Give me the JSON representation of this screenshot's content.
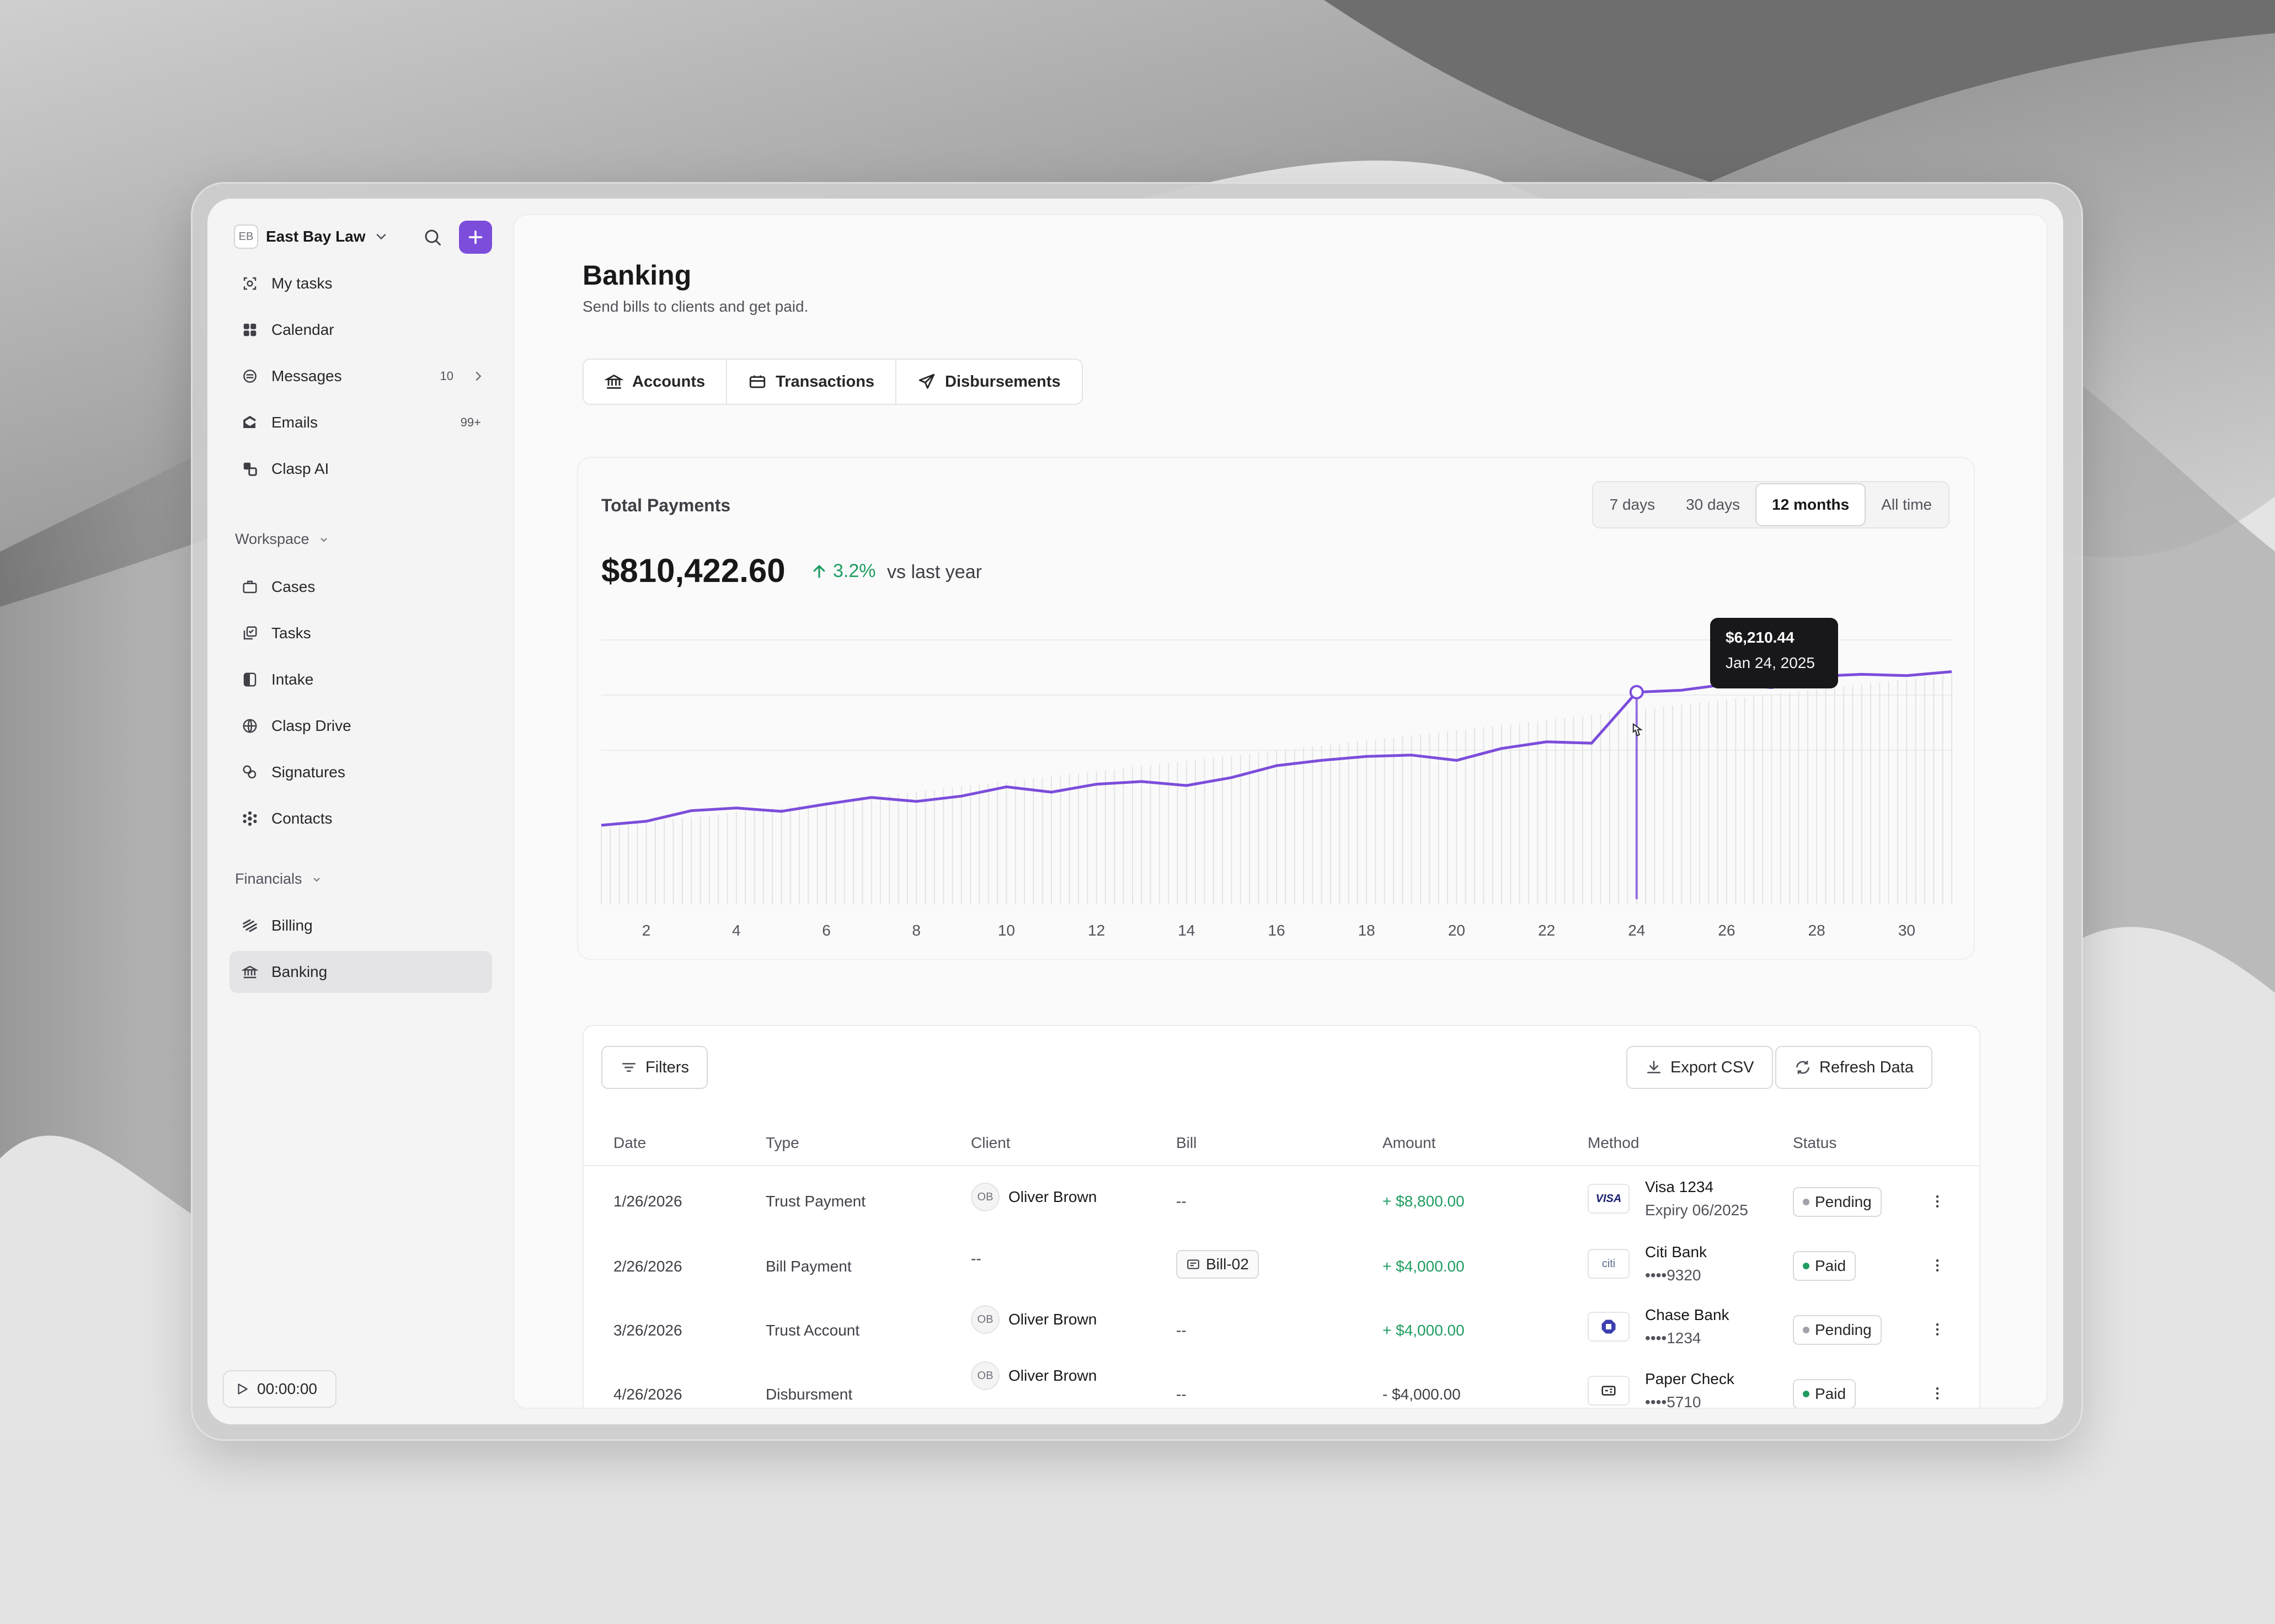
{
  "sidebar": {
    "org_initials": "EB",
    "org_name": "East Bay Law",
    "items_top": [
      {
        "label": "My tasks",
        "icon": "target-icon"
      },
      {
        "label": "Calendar",
        "icon": "grid-icon"
      },
      {
        "label": "Messages",
        "icon": "chat-icon",
        "badge": "10"
      },
      {
        "label": "Emails",
        "icon": "email-icon",
        "badge": "99+"
      },
      {
        "label": "Clasp AI",
        "icon": "ai-icon"
      }
    ],
    "workspace_label": "Workspace",
    "workspace_items": [
      {
        "label": "Cases"
      },
      {
        "label": "Tasks"
      },
      {
        "label": "Intake"
      },
      {
        "label": "Clasp Drive"
      },
      {
        "label": "Signatures"
      },
      {
        "label": "Contacts"
      }
    ],
    "financials_label": "Financials",
    "financials_items": [
      {
        "label": "Billing"
      },
      {
        "label": "Banking",
        "active": true
      }
    ],
    "timer": "00:00:00"
  },
  "page": {
    "title": "Banking",
    "subtitle": "Send bills to clients and get paid.",
    "tabs": [
      "Accounts",
      "Transactions",
      "Disbursements"
    ]
  },
  "payments_card": {
    "title": "Total Payments",
    "ranges": [
      "7 days",
      "30 days",
      "12 months",
      "All time"
    ],
    "active_range": "12 months",
    "total": "$810,422.60",
    "delta": "3.2%",
    "delta_note": "vs last year",
    "tooltip_value": "$6,210.44",
    "tooltip_date": "Jan 24, 2025"
  },
  "chart_data": {
    "type": "line",
    "x_tick_labels": [
      "2",
      "4",
      "6",
      "8",
      "10",
      "12",
      "14",
      "16",
      "18",
      "20",
      "22",
      "24",
      "26",
      "28",
      "30"
    ],
    "x": [
      1,
      2,
      3,
      4,
      5,
      6,
      7,
      8,
      9,
      10,
      11,
      12,
      13,
      14,
      15,
      16,
      17,
      18,
      19,
      20,
      21,
      22,
      23,
      24,
      25,
      26,
      27,
      28,
      29,
      30,
      31
    ],
    "values": [
      4200,
      4260,
      4420,
      4460,
      4410,
      4520,
      4620,
      4560,
      4640,
      4780,
      4700,
      4820,
      4860,
      4800,
      4920,
      5100,
      5180,
      5240,
      5260,
      5180,
      5360,
      5460,
      5440,
      6210.44,
      6240,
      6330,
      6280,
      6450,
      6480,
      6460,
      6520
    ],
    "highlight_index": 23,
    "accent": "#7c4ddb",
    "grid": true
  },
  "table": {
    "filters_label": "Filters",
    "export_label": "Export CSV",
    "refresh_label": "Refresh Data",
    "columns": [
      "Date",
      "Type",
      "Client",
      "Bill",
      "Amount",
      "Method",
      "Status"
    ],
    "rows": [
      {
        "date": "1/26/2026",
        "type": "Trust Payment",
        "client_initials": "OB",
        "client": "Oliver Brown",
        "bill": "--",
        "amount": "+ $8,800.00",
        "amount_sign": "pos",
        "method_logo": "VISA",
        "method": "Visa 1234",
        "method_sub": "Expiry 06/2025",
        "status": "Pending",
        "status_color": "#a1a1aa"
      },
      {
        "date": "2/26/2026",
        "type": "Bill Payment",
        "client_initials": "",
        "client": "--",
        "bill": "Bill-02",
        "amount": "+ $4,000.00",
        "amount_sign": "pos",
        "method_logo": "citi",
        "method": "Citi Bank",
        "method_sub": "••••9320",
        "status": "Paid",
        "status_color": "#1f9d61"
      },
      {
        "date": "3/26/2026",
        "type": "Trust Account",
        "client_initials": "OB",
        "client": "Oliver Brown",
        "bill": "--",
        "amount": "+ $4,000.00",
        "amount_sign": "pos",
        "method_logo": "chase",
        "method": "Chase Bank",
        "method_sub": "••••1234",
        "status": "Pending",
        "status_color": "#a1a1aa"
      },
      {
        "date": "4/26/2026",
        "type": "Disbursment",
        "client_initials": "OB",
        "client": "Oliver Brown",
        "bill": "--",
        "amount": "- $4,000.00",
        "amount_sign": "neg",
        "method_logo": "check",
        "method": "Paper Check",
        "method_sub": "••••5710",
        "status": "Paid",
        "status_color": "#1f9d61"
      }
    ]
  }
}
